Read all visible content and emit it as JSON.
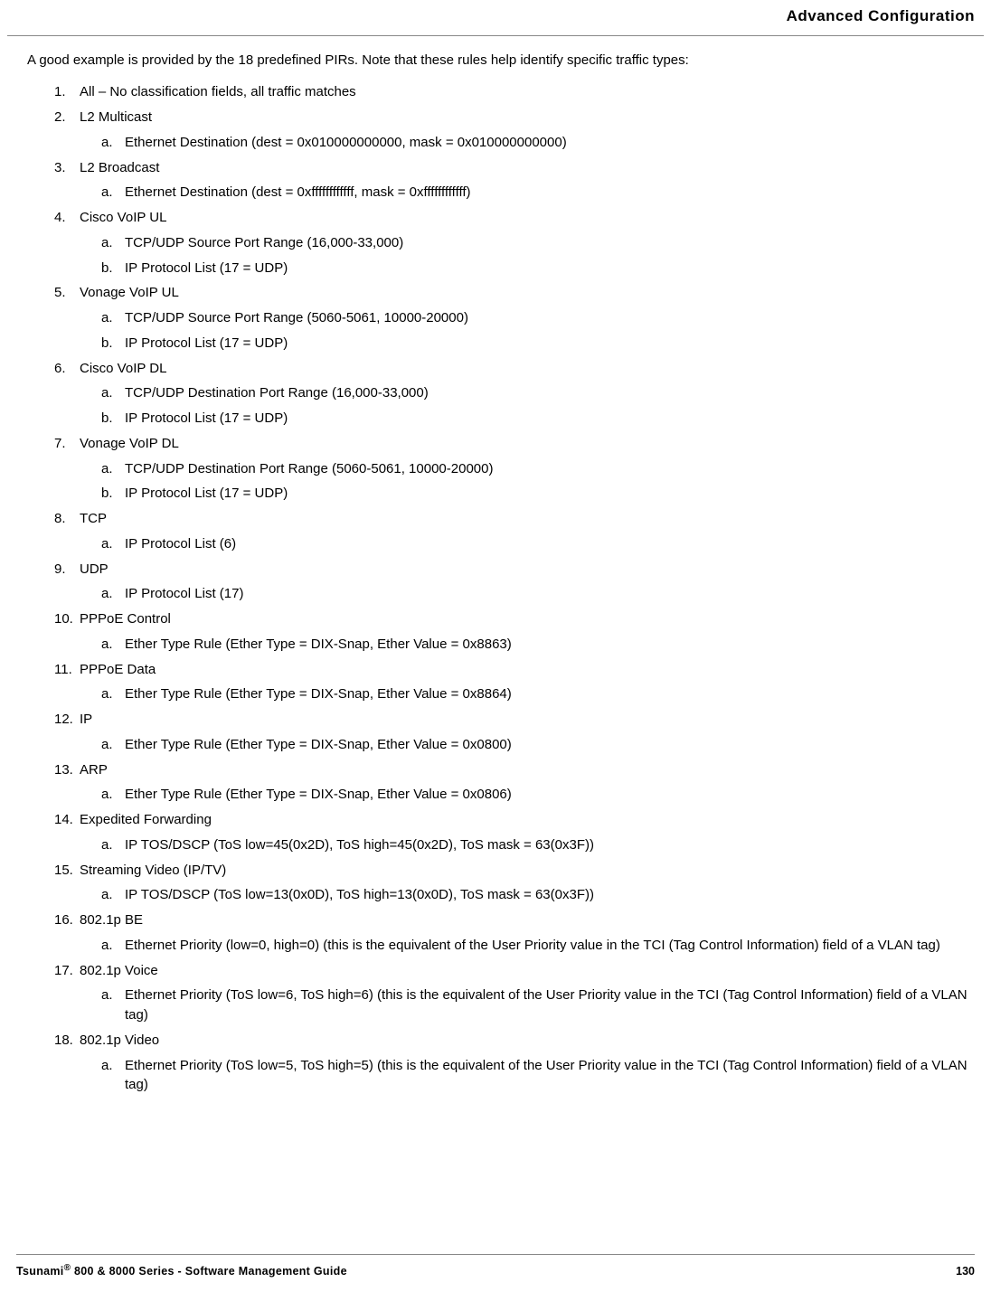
{
  "header": {
    "title": "Advanced Configuration"
  },
  "intro": "A good example is provided by the 18 predefined PIRs. Note that these rules help identify specific traffic types:",
  "items": [
    {
      "num": "1.",
      "label": "All – No classification fields, all traffic matches",
      "sub": []
    },
    {
      "num": "2.",
      "label": "L2 Multicast",
      "sub": [
        {
          "alpha": "a.",
          "text": "Ethernet Destination (dest = 0x010000000000, mask = 0x010000000000)"
        }
      ]
    },
    {
      "num": "3.",
      "label": "L2 Broadcast",
      "sub": [
        {
          "alpha": "a.",
          "text": "Ethernet Destination (dest = 0xffffffffffff, mask = 0xffffffffffff)"
        }
      ]
    },
    {
      "num": "4.",
      "label": "Cisco VoIP UL",
      "sub": [
        {
          "alpha": "a.",
          "text": "TCP/UDP Source Port Range (16,000-33,000)"
        },
        {
          "alpha": "b.",
          "text": "IP Protocol List (17 = UDP)"
        }
      ]
    },
    {
      "num": "5.",
      "label": "Vonage VoIP UL",
      "sub": [
        {
          "alpha": "a.",
          "text": "TCP/UDP Source Port Range (5060-5061, 10000-20000)"
        },
        {
          "alpha": "b.",
          "text": "IP Protocol List (17 = UDP)"
        }
      ]
    },
    {
      "num": "6.",
      "label": "Cisco VoIP DL",
      "sub": [
        {
          "alpha": "a.",
          "text": "TCP/UDP Destination Port Range (16,000-33,000)"
        },
        {
          "alpha": "b.",
          "text": "IP Protocol List (17 = UDP)"
        }
      ]
    },
    {
      "num": "7.",
      "label": "Vonage VoIP DL",
      "sub": [
        {
          "alpha": "a.",
          "text": "TCP/UDP Destination Port Range (5060-5061, 10000-20000)"
        },
        {
          "alpha": "b.",
          "text": "IP Protocol List (17 = UDP)"
        }
      ]
    },
    {
      "num": "8.",
      "label": "TCP",
      "sub": [
        {
          "alpha": "a.",
          "text": "IP Protocol List (6)"
        }
      ]
    },
    {
      "num": "9.",
      "label": "UDP",
      "sub": [
        {
          "alpha": "a.",
          "text": "IP Protocol List (17)"
        }
      ]
    },
    {
      "num": "10.",
      "label": "PPPoE Control",
      "sub": [
        {
          "alpha": "a.",
          "text": "Ether Type Rule (Ether Type = DIX-Snap, Ether Value = 0x8863)"
        }
      ]
    },
    {
      "num": "11.",
      "label": "PPPoE Data",
      "sub": [
        {
          "alpha": "a.",
          "text": "Ether Type Rule (Ether Type = DIX-Snap, Ether Value = 0x8864)"
        }
      ]
    },
    {
      "num": "12.",
      "label": "IP",
      "sub": [
        {
          "alpha": "a.",
          "text": "Ether Type Rule (Ether Type = DIX-Snap, Ether Value = 0x0800)"
        }
      ]
    },
    {
      "num": "13.",
      "label": "ARP",
      "sub": [
        {
          "alpha": "a.",
          "text": " Ether Type Rule (Ether Type = DIX-Snap, Ether Value = 0x0806)"
        }
      ]
    },
    {
      "num": "14.",
      "label": "Expedited Forwarding",
      "sub": [
        {
          "alpha": "a.",
          "text": "IP TOS/DSCP (ToS low=45(0x2D), ToS high=45(0x2D), ToS mask = 63(0x3F))"
        }
      ]
    },
    {
      "num": "15.",
      "label": "Streaming Video (IP/TV)",
      "sub": [
        {
          "alpha": "a.",
          "text": "IP TOS/DSCP (ToS low=13(0x0D), ToS high=13(0x0D), ToS mask = 63(0x3F))"
        }
      ]
    },
    {
      "num": "16.",
      "label": "802.1p BE",
      "sub": [
        {
          "alpha": "a.",
          "text": "Ethernet Priority (low=0, high=0) (this is the equivalent of the User Priority value in the TCI (Tag Control Information) field of a VLAN tag)"
        }
      ]
    },
    {
      "num": "17.",
      "label": "802.1p Voice",
      "sub": [
        {
          "alpha": "a.",
          "text": "Ethernet Priority (ToS low=6, ToS high=6) (this is the equivalent of the User Priority value in the TCI (Tag Control Information) field of a VLAN tag)"
        }
      ]
    },
    {
      "num": "18.",
      "label": "802.1p Video",
      "sub": [
        {
          "alpha": "a.",
          "text": "Ethernet Priority (ToS low=5, ToS high=5) (this is the equivalent of the User Priority value in the TCI (Tag Control Information) field of a VLAN tag)"
        }
      ]
    }
  ],
  "footer": {
    "product_prefix": "Tsunami",
    "reg_symbol": "®",
    "product_suffix": " 800 & 8000 Series - Software Management Guide",
    "page_number": "130"
  }
}
